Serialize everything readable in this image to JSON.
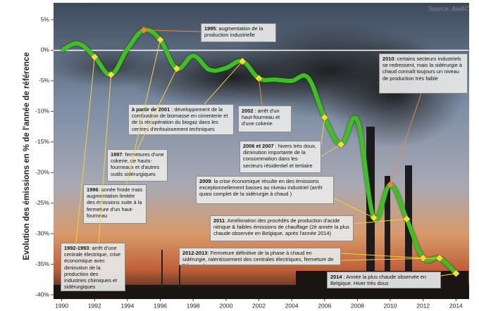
{
  "chart_data": {
    "type": "line",
    "source": "Source: AwAC",
    "y_label": "Evolution des émissions en % de l'année de référence",
    "x": [
      1990,
      1991,
      1992,
      1993,
      1994,
      1995,
      1996,
      1997,
      1998,
      1999,
      2000,
      2001,
      2002,
      2003,
      2004,
      2005,
      2006,
      2007,
      2008,
      2009,
      2010,
      2011,
      2012,
      2013,
      2014
    ],
    "series": [
      {
        "color": "#3fbf22",
        "values": [
          0,
          1.1,
          -1.1,
          -4.0,
          0.2,
          3.3,
          1.7,
          -3.0,
          -0.9,
          -3.2,
          -2.9,
          -1.8,
          -4.6,
          -4.8,
          -5.0,
          -4.5,
          -11.0,
          -15.4,
          -11.5,
          -27.4,
          -22.0,
          -27.6,
          -34.0,
          -34.0,
          -36.5
        ],
        "marker_colors": [
          null,
          null,
          "#f5e23a",
          "#f5e23a",
          null,
          "#f0892e",
          "#f5e23a",
          "#f5e23a",
          null,
          null,
          null,
          "#f5e23a",
          "#f5e23a",
          null,
          null,
          null,
          "#f5e23a",
          "#f5e23a",
          null,
          "#f5e23a",
          "#f0892e",
          "#f5e23a",
          "#f5e23a",
          "#f5e23a",
          "#f5e23a"
        ]
      }
    ],
    "xlim": [
      1989.5,
      2014.5
    ],
    "xticks": [
      1990,
      1992,
      1994,
      1996,
      1998,
      2000,
      2002,
      2004,
      2006,
      2008,
      2010,
      2012,
      2014
    ],
    "ylim": [
      -40,
      5
    ],
    "yticks": [
      {
        "value": 5,
        "label": "5%"
      },
      {
        "value": 0,
        "label": "0%"
      },
      {
        "value": -5,
        "label": "-5%"
      },
      {
        "value": -10,
        "label": "-10%"
      },
      {
        "value": -15,
        "label": "-15%"
      },
      {
        "value": -20,
        "label": "-20%"
      },
      {
        "value": -25,
        "label": "-25%"
      },
      {
        "value": -30,
        "label": "-30%"
      },
      {
        "value": -35,
        "label": "-35%"
      },
      {
        "value": -40,
        "label": "-40%"
      }
    ],
    "annotations": [
      {
        "year": "1995",
        "text": ": augmentation de la production industrielle"
      },
      {
        "year": "2010",
        "text": ": certains secteurs industriels se redressent, mais la sidérurgie à chaud connaît toujours un niveau de production  très faible"
      },
      {
        "year": "à partir de 2001",
        "text": " : développement de la combustion de biomasse en cimenterie et de la récupération du biogaz dans les centres d'enfouissement techniques"
      },
      {
        "year": "2002",
        "text": " : arrêt d'un haut-fourneau et d'une cokerie"
      },
      {
        "year": "1997",
        "text": ": fermetures d'une cokerie, de hauts-fourneaux et d'autres outils sidérurgiques"
      },
      {
        "year": "2006 et 2007",
        "text": " : hivers très doux, diminution importante de la consommation dans les secteurs résidentiel et tertiaire"
      },
      {
        "year": "1996",
        "text": ": année froide mais augmentation limitée des émissions suite à la fermeture d'un haut-fourneau"
      },
      {
        "year": "2009",
        "text": ": la crise économique résulte en des émissions exceptionnellement basses au niveau industriel (arrêt quasi complet de la sidérurgie à chaud )"
      },
      {
        "year": "2011",
        "text": ": Amélioration des procédés de production d'acide nitrique & faibles émissions de chauffage (2è année la plus chaude  observée en Belgique, après l'année 2014)"
      },
      {
        "year": "1992-1993",
        "text": ": arrêt d'une centrale électrique, crise économique avec diminution de la production des industries chimiques et sidérurgiques"
      },
      {
        "year": "2012-2013",
        "text": ": Fermeture définitive de la phase à chaud en sidérurgie, ralentissement des centrales électriques, fermeture de 2 lignes de verre"
      },
      {
        "year": "2014",
        "text": " : Année la plus chaude observée en Belgique. Hiver très doux"
      }
    ]
  }
}
